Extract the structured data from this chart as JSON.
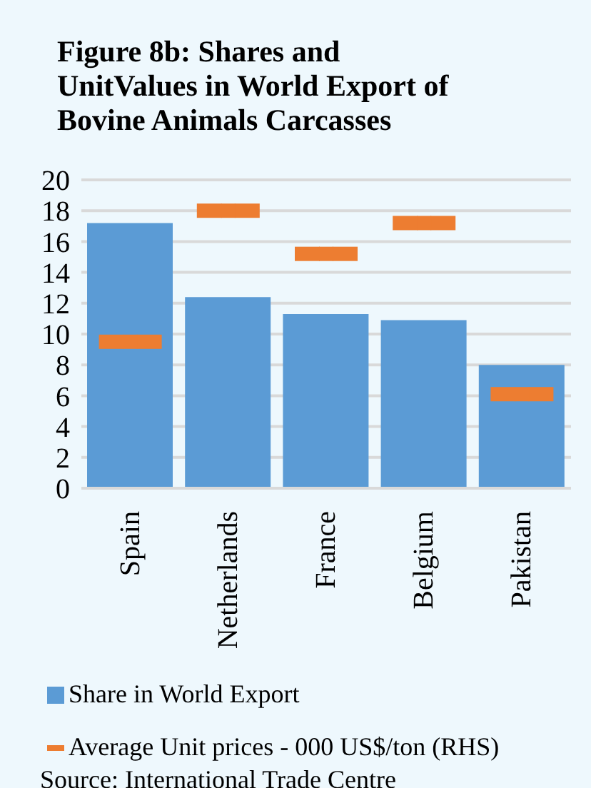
{
  "chart_data": {
    "type": "bar",
    "title": "Figure 8b: Shares and UnitValues in World Export of Bovine Animals Carcasses",
    "categories": [
      "Spain",
      "Netherlands",
      "France",
      "Belgium",
      "Pakistan"
    ],
    "series": [
      {
        "name": "Share in World Export",
        "color": "#5b9bd5",
        "values": [
          17.2,
          12.4,
          11.3,
          10.9,
          8.0
        ]
      },
      {
        "name": "Average Unit prices - 000 US$/ton (RHS)",
        "type": "scatter",
        "color": "#ed7d31",
        "values": [
          9.5,
          18.0,
          15.2,
          17.2,
          6.1
        ]
      }
    ],
    "ylim": [
      0,
      20
    ],
    "yticks": [
      0,
      2,
      4,
      6,
      8,
      10,
      12,
      14,
      16,
      18,
      20
    ],
    "grid": "y",
    "legend": "bottom",
    "annotations": [
      "Source: International Trade Centre"
    ]
  }
}
